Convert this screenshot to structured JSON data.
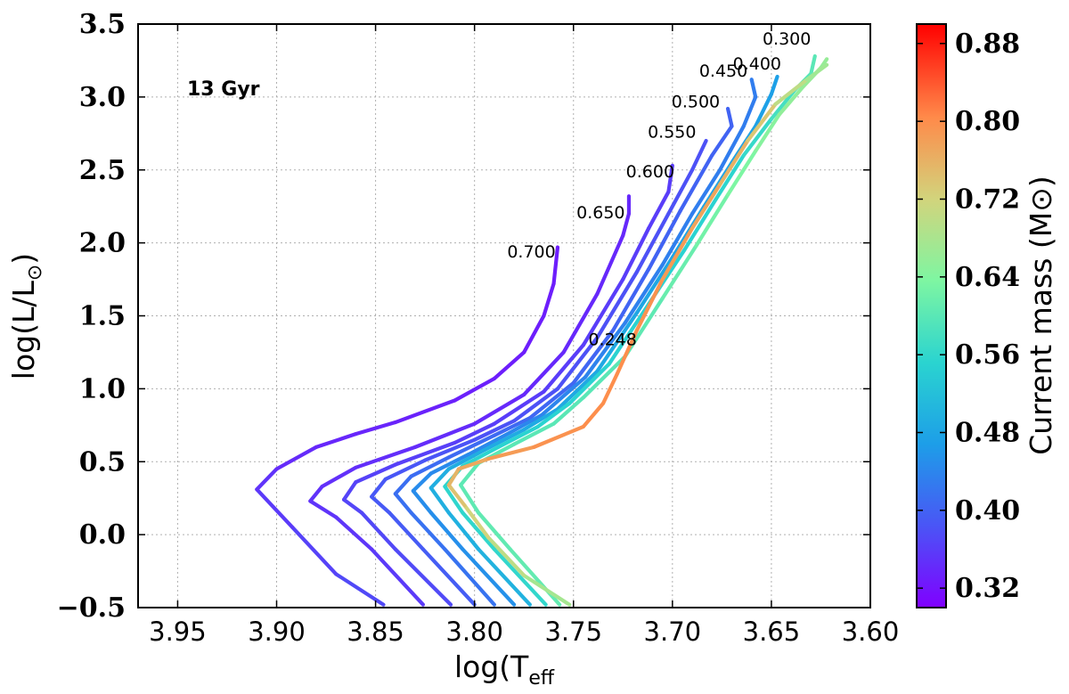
{
  "chart_data": {
    "type": "line",
    "title": "",
    "xlabel": "log(T_eff)",
    "ylabel": "log(L/L_sun)",
    "xlim": [
      3.97,
      3.6
    ],
    "ylim": [
      -0.5,
      3.5
    ],
    "xticks": [
      "3.95",
      "3.90",
      "3.85",
      "3.80",
      "3.75",
      "3.70",
      "3.65",
      "3.60"
    ],
    "yticks": [
      "−0.5",
      "0.0",
      "0.5",
      "1.0",
      "1.5",
      "2.0",
      "2.5",
      "3.0",
      "3.5"
    ],
    "grid": true,
    "age_label": "13 Gyr",
    "colorbar": {
      "label": "Current mass (M⊙)",
      "range": [
        0.3,
        0.9
      ],
      "ticks": [
        "0.32",
        "0.40",
        "0.48",
        "0.56",
        "0.64",
        "0.72",
        "0.80",
        "0.88"
      ],
      "tick_values": [
        0.32,
        0.4,
        0.48,
        0.56,
        0.64,
        0.72,
        0.8,
        0.88
      ]
    },
    "series": [
      {
        "name": "0.700",
        "label_pos": [
          3.759,
          1.9
        ],
        "points": [
          [
            3.846,
            -0.48,
            0.375
          ],
          [
            3.87,
            -0.27,
            0.37
          ],
          [
            3.892,
            0.05,
            0.36
          ],
          [
            3.91,
            0.31,
            0.355
          ],
          [
            3.9,
            0.45,
            0.345
          ],
          [
            3.88,
            0.6,
            0.34
          ],
          [
            3.86,
            0.69,
            0.338
          ],
          [
            3.84,
            0.77,
            0.335
          ],
          [
            3.81,
            0.92,
            0.333
          ],
          [
            3.79,
            1.07,
            0.33
          ],
          [
            3.775,
            1.25,
            0.33
          ],
          [
            3.765,
            1.5,
            0.33
          ],
          [
            3.76,
            1.72,
            0.33
          ],
          [
            3.758,
            1.97,
            0.33
          ]
        ]
      },
      {
        "name": "0.650",
        "label_pos": [
          3.724,
          2.17
        ],
        "points": [
          [
            3.826,
            -0.48,
            0.36
          ],
          [
            3.852,
            -0.1,
            0.355
          ],
          [
            3.87,
            0.12,
            0.352
          ],
          [
            3.883,
            0.23,
            0.35
          ],
          [
            3.877,
            0.33,
            0.348
          ],
          [
            3.86,
            0.46,
            0.346
          ],
          [
            3.83,
            0.6,
            0.344
          ],
          [
            3.8,
            0.76,
            0.342
          ],
          [
            3.775,
            0.96,
            0.34
          ],
          [
            3.755,
            1.25,
            0.34
          ],
          [
            3.738,
            1.65,
            0.34
          ],
          [
            3.725,
            2.05,
            0.34
          ],
          [
            3.722,
            2.2,
            0.34
          ],
          [
            3.722,
            2.32,
            0.34
          ]
        ]
      },
      {
        "name": "0.600",
        "label_pos": [
          3.699,
          2.45
        ],
        "points": [
          [
            3.812,
            -0.48,
            0.375
          ],
          [
            3.84,
            -0.1,
            0.372
          ],
          [
            3.857,
            0.15,
            0.37
          ],
          [
            3.866,
            0.24,
            0.368
          ],
          [
            3.86,
            0.36,
            0.366
          ],
          [
            3.84,
            0.48,
            0.364
          ],
          [
            3.81,
            0.63,
            0.362
          ],
          [
            3.79,
            0.76,
            0.36
          ],
          [
            3.765,
            0.98,
            0.36
          ],
          [
            3.745,
            1.3,
            0.36
          ],
          [
            3.725,
            1.75,
            0.36
          ],
          [
            3.712,
            2.1,
            0.36
          ],
          [
            3.702,
            2.35,
            0.36
          ],
          [
            3.7,
            2.53,
            0.36
          ]
        ]
      },
      {
        "name": "0.550",
        "label_pos": [
          3.688,
          2.72
        ],
        "points": [
          [
            3.8,
            -0.48,
            0.395
          ],
          [
            3.826,
            -0.1,
            0.392
          ],
          [
            3.843,
            0.15,
            0.39
          ],
          [
            3.852,
            0.26,
            0.388
          ],
          [
            3.845,
            0.38,
            0.386
          ],
          [
            3.825,
            0.51,
            0.384
          ],
          [
            3.8,
            0.65,
            0.382
          ],
          [
            3.78,
            0.78,
            0.38
          ],
          [
            3.758,
            1.0,
            0.38
          ],
          [
            3.738,
            1.35,
            0.38
          ],
          [
            3.718,
            1.8,
            0.38
          ],
          [
            3.702,
            2.2,
            0.38
          ],
          [
            3.69,
            2.5,
            0.38
          ],
          [
            3.683,
            2.7,
            0.38
          ]
        ]
      },
      {
        "name": "0.500",
        "label_pos": [
          3.676,
          2.93
        ],
        "points": [
          [
            3.79,
            -0.48,
            0.42
          ],
          [
            3.815,
            -0.1,
            0.418
          ],
          [
            3.832,
            0.15,
            0.416
          ],
          [
            3.84,
            0.28,
            0.414
          ],
          [
            3.832,
            0.4,
            0.412
          ],
          [
            3.813,
            0.53,
            0.41
          ],
          [
            3.79,
            0.68,
            0.408
          ],
          [
            3.772,
            0.8,
            0.406
          ],
          [
            3.75,
            1.04,
            0.404
          ],
          [
            3.73,
            1.4,
            0.402
          ],
          [
            3.712,
            1.82,
            0.4
          ],
          [
            3.696,
            2.22,
            0.4
          ],
          [
            3.68,
            2.6,
            0.4
          ],
          [
            3.67,
            2.8,
            0.4
          ],
          [
            3.672,
            2.92,
            0.4
          ]
        ]
      },
      {
        "name": "0.450",
        "label_pos": [
          3.662,
          3.14
        ],
        "points": [
          [
            3.78,
            -0.48,
            0.455
          ],
          [
            3.806,
            -0.1,
            0.452
          ],
          [
            3.822,
            0.15,
            0.45
          ],
          [
            3.831,
            0.3,
            0.448
          ],
          [
            3.822,
            0.42,
            0.446
          ],
          [
            3.803,
            0.55,
            0.444
          ],
          [
            3.782,
            0.7,
            0.442
          ],
          [
            3.766,
            0.82,
            0.44
          ],
          [
            3.744,
            1.08,
            0.438
          ],
          [
            3.724,
            1.45,
            0.436
          ],
          [
            3.705,
            1.85,
            0.434
          ],
          [
            3.69,
            2.2,
            0.432
          ],
          [
            3.676,
            2.5,
            0.43
          ],
          [
            3.664,
            2.8,
            0.43
          ],
          [
            3.658,
            3.0,
            0.43
          ],
          [
            3.66,
            3.12,
            0.43
          ]
        ]
      },
      {
        "name": "0.400",
        "label_pos": [
          3.645,
          3.19
        ],
        "points": [
          [
            3.772,
            -0.48,
            0.5
          ],
          [
            3.798,
            -0.1,
            0.498
          ],
          [
            3.813,
            0.15,
            0.496
          ],
          [
            3.822,
            0.32,
            0.494
          ],
          [
            3.813,
            0.45,
            0.492
          ],
          [
            3.795,
            0.58,
            0.49
          ],
          [
            3.775,
            0.72,
            0.488
          ],
          [
            3.758,
            0.86,
            0.486
          ],
          [
            3.738,
            1.12,
            0.484
          ],
          [
            3.718,
            1.52,
            0.482
          ],
          [
            3.7,
            1.9,
            0.48
          ],
          [
            3.684,
            2.25,
            0.478
          ],
          [
            3.67,
            2.55,
            0.476
          ],
          [
            3.658,
            2.8,
            0.474
          ],
          [
            3.65,
            3.02,
            0.472
          ],
          [
            3.647,
            3.14,
            0.47
          ]
        ]
      },
      {
        "name": "0.300",
        "label_pos": [
          3.63,
          3.36
        ],
        "points": [
          [
            3.764,
            -0.48,
            0.56
          ],
          [
            3.79,
            -0.1,
            0.56
          ],
          [
            3.806,
            0.15,
            0.558
          ],
          [
            3.815,
            0.33,
            0.556
          ],
          [
            3.806,
            0.47,
            0.554
          ],
          [
            3.788,
            0.6,
            0.552
          ],
          [
            3.768,
            0.74,
            0.55
          ],
          [
            3.752,
            0.9,
            0.55
          ],
          [
            3.732,
            1.17,
            0.55
          ],
          [
            3.712,
            1.58,
            0.55
          ],
          [
            3.694,
            1.95,
            0.55
          ],
          [
            3.678,
            2.3,
            0.55
          ],
          [
            3.664,
            2.6,
            0.56
          ],
          [
            3.65,
            2.85,
            0.57
          ],
          [
            3.638,
            3.05,
            0.59
          ],
          [
            3.63,
            3.16,
            0.6
          ],
          [
            3.628,
            3.28,
            0.6
          ]
        ]
      },
      {
        "name": "",
        "label_pos": null,
        "points": [
          [
            3.757,
            -0.48,
            0.61
          ],
          [
            3.782,
            -0.1,
            0.608
          ],
          [
            3.798,
            0.15,
            0.606
          ],
          [
            3.807,
            0.34,
            0.604
          ],
          [
            3.798,
            0.49,
            0.602
          ],
          [
            3.78,
            0.62,
            0.6
          ],
          [
            3.76,
            0.76,
            0.6
          ],
          [
            3.745,
            0.94,
            0.6
          ],
          [
            3.724,
            1.22,
            0.6
          ],
          [
            3.705,
            1.62,
            0.61
          ],
          [
            3.688,
            1.98,
            0.62
          ],
          [
            3.672,
            2.33,
            0.63
          ],
          [
            3.658,
            2.63,
            0.64
          ],
          [
            3.646,
            2.88,
            0.65
          ],
          [
            3.634,
            3.07,
            0.66
          ],
          [
            3.625,
            3.2,
            0.66
          ],
          [
            3.622,
            3.26,
            0.66
          ]
        ]
      },
      {
        "name": "0.248",
        "label_pos": [
          3.718,
          1.3
        ],
        "points": [
          [
            3.752,
            -0.48,
            0.66
          ],
          [
            3.775,
            -0.28,
            0.69
          ],
          [
            3.793,
            -0.02,
            0.71
          ],
          [
            3.805,
            0.2,
            0.73
          ],
          [
            3.813,
            0.34,
            0.75
          ],
          [
            3.808,
            0.45,
            0.76
          ],
          [
            3.793,
            0.52,
            0.78
          ],
          [
            3.77,
            0.6,
            0.79
          ],
          [
            3.745,
            0.74,
            0.8
          ],
          [
            3.735,
            0.9,
            0.8
          ],
          [
            3.728,
            1.1,
            0.8
          ],
          [
            3.718,
            1.4,
            0.8
          ],
          [
            3.705,
            1.75,
            0.79
          ],
          [
            3.69,
            2.1,
            0.78
          ],
          [
            3.676,
            2.4,
            0.77
          ],
          [
            3.662,
            2.7,
            0.75
          ],
          [
            3.648,
            2.95,
            0.72
          ],
          [
            3.632,
            3.12,
            0.68
          ],
          [
            3.622,
            3.22,
            0.66
          ]
        ]
      }
    ]
  }
}
